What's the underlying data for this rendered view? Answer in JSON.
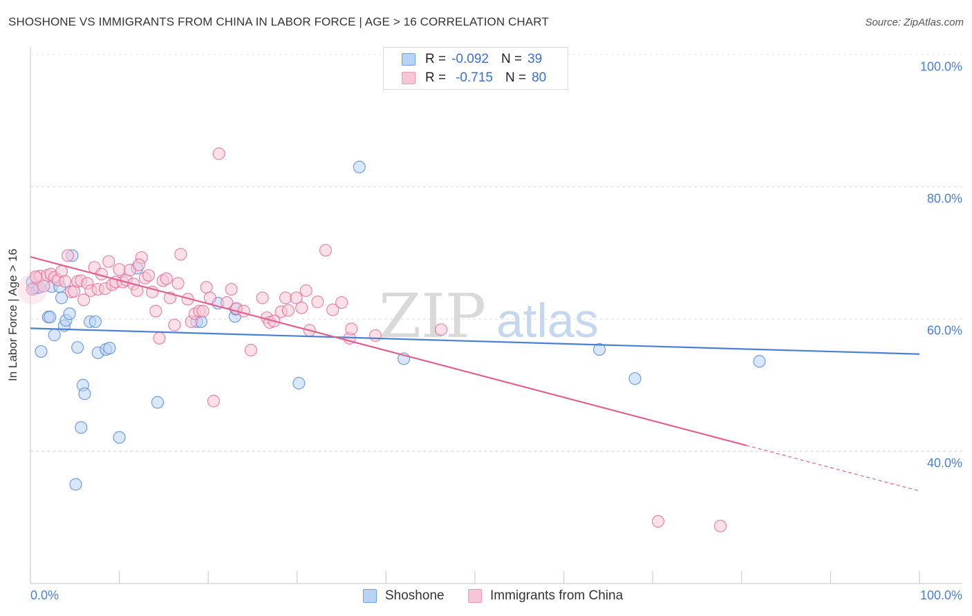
{
  "header": {
    "title": "SHOSHONE VS IMMIGRANTS FROM CHINA IN LABOR FORCE | AGE > 16 CORRELATION CHART",
    "source": "Source: ZipAtlas.com"
  },
  "watermark": {
    "part1": "ZIP",
    "part2": "atlas"
  },
  "legend": {
    "rows": [
      {
        "r_label": "R =",
        "r_value": "-0.092",
        "n_label": "N =",
        "n_value": "39",
        "color": "#4a7fd4",
        "fill": "#b9d3f5"
      },
      {
        "r_label": "R =",
        "r_value": "-0.715",
        "n_label": "N =",
        "n_value": "80",
        "color": "#e06090",
        "fill": "#f7c6d6"
      }
    ]
  },
  "bottom_legend": {
    "items": [
      {
        "label": "Shoshone",
        "fill": "#b9d3f5",
        "border": "#6f9fe0"
      },
      {
        "label": "Immigrants from China",
        "fill": "#f7c6d6",
        "border": "#e898b4"
      }
    ]
  },
  "chart_data": {
    "type": "scatter",
    "title": "SHOSHONE VS IMMIGRANTS FROM CHINA IN LABOR FORCE | AGE > 16 CORRELATION CHART",
    "xlabel": "",
    "ylabel": "In Labor Force | Age > 16",
    "xlim": [
      0,
      100
    ],
    "ylim": [
      20,
      100
    ],
    "x_tick_labels": [
      "0.0%",
      "100.0%"
    ],
    "y_ticks": [
      40,
      60,
      80,
      100
    ],
    "y_tick_labels": [
      "40.0%",
      "60.0%",
      "80.0%",
      "100.0%"
    ],
    "grid": true,
    "series": [
      {
        "name": "Shoshone",
        "color": "#4a7fd4",
        "fill": "#b9d3f5",
        "r": -0.092,
        "n": 39,
        "trend": {
          "x0": 0,
          "y0": 58.6,
          "x1": 100,
          "y1": 54.7
        },
        "points": [
          [
            0.4,
            64.7
          ],
          [
            0.7,
            64.7
          ],
          [
            1.2,
            55.1
          ],
          [
            2.0,
            60.3
          ],
          [
            2.2,
            60.3
          ],
          [
            2.4,
            64.9
          ],
          [
            2.7,
            57.6
          ],
          [
            3.3,
            64.9
          ],
          [
            3.5,
            63.2
          ],
          [
            3.8,
            59.0
          ],
          [
            4.0,
            59.8
          ],
          [
            4.4,
            60.8
          ],
          [
            4.7,
            69.6
          ],
          [
            5.3,
            55.7
          ],
          [
            5.9,
            50.0
          ],
          [
            6.1,
            48.7
          ],
          [
            5.7,
            43.6
          ],
          [
            6.7,
            59.6
          ],
          [
            7.3,
            59.6
          ],
          [
            7.6,
            54.9
          ],
          [
            8.5,
            55.4
          ],
          [
            8.9,
            55.6
          ],
          [
            10.0,
            42.1
          ],
          [
            12.0,
            67.7
          ],
          [
            14.3,
            47.4
          ],
          [
            5.1,
            35.0
          ],
          [
            18.7,
            59.6
          ],
          [
            19.2,
            59.6
          ],
          [
            21.1,
            62.4
          ],
          [
            23.0,
            60.4
          ],
          [
            23.1,
            61.5
          ],
          [
            30.2,
            50.3
          ],
          [
            37.0,
            83.0
          ],
          [
            42.0,
            54.0
          ],
          [
            64.0,
            55.4
          ],
          [
            68.0,
            51.0
          ],
          [
            82.0,
            53.6
          ],
          [
            0.2,
            65.6
          ],
          [
            1.0,
            64.8
          ]
        ]
      },
      {
        "name": "Immigrants from China",
        "color": "#e06090",
        "fill": "#f7c6d6",
        "r": -0.715,
        "n": 80,
        "trend": {
          "x0": 0,
          "y0": 69.4,
          "x1": 80.5,
          "y1": 40.9,
          "dashed_to": {
            "x": 100,
            "y": 34.0
          }
        },
        "points": [
          [
            0.2,
            64.5
          ],
          [
            0.7,
            66.2
          ],
          [
            1.1,
            66.5
          ],
          [
            1.5,
            65.0
          ],
          [
            1.9,
            66.6
          ],
          [
            2.3,
            66.8
          ],
          [
            2.7,
            66.3
          ],
          [
            3.1,
            65.9
          ],
          [
            3.5,
            67.2
          ],
          [
            3.9,
            65.7
          ],
          [
            4.2,
            69.6
          ],
          [
            4.6,
            64.1
          ],
          [
            4.9,
            64.2
          ],
          [
            5.3,
            65.7
          ],
          [
            5.7,
            65.8
          ],
          [
            6.0,
            62.9
          ],
          [
            6.4,
            65.4
          ],
          [
            6.8,
            64.3
          ],
          [
            7.2,
            67.8
          ],
          [
            7.6,
            64.5
          ],
          [
            8.0,
            66.8
          ],
          [
            8.4,
            64.6
          ],
          [
            8.8,
            68.7
          ],
          [
            9.2,
            65.2
          ],
          [
            9.6,
            65.6
          ],
          [
            10.0,
            67.5
          ],
          [
            10.4,
            65.6
          ],
          [
            10.8,
            65.9
          ],
          [
            11.2,
            67.4
          ],
          [
            11.6,
            65.3
          ],
          [
            12.0,
            64.3
          ],
          [
            12.5,
            69.3
          ],
          [
            12.9,
            66.2
          ],
          [
            13.3,
            66.6
          ],
          [
            13.7,
            64.1
          ],
          [
            14.1,
            61.2
          ],
          [
            14.5,
            57.1
          ],
          [
            14.9,
            65.8
          ],
          [
            15.3,
            66.1
          ],
          [
            15.7,
            63.2
          ],
          [
            16.2,
            59.1
          ],
          [
            16.6,
            65.4
          ],
          [
            16.9,
            69.8
          ],
          [
            17.7,
            63.0
          ],
          [
            18.1,
            59.6
          ],
          [
            18.5,
            60.8
          ],
          [
            19.0,
            61.2
          ],
          [
            19.4,
            61.2
          ],
          [
            19.8,
            64.8
          ],
          [
            20.2,
            63.2
          ],
          [
            20.6,
            47.6
          ],
          [
            21.2,
            85.0
          ],
          [
            22.1,
            62.5
          ],
          [
            22.6,
            64.5
          ],
          [
            23.2,
            61.6
          ],
          [
            24.0,
            61.2
          ],
          [
            24.8,
            55.3
          ],
          [
            26.1,
            63.2
          ],
          [
            26.6,
            60.2
          ],
          [
            26.9,
            59.5
          ],
          [
            27.4,
            59.7
          ],
          [
            28.2,
            61.1
          ],
          [
            28.7,
            63.2
          ],
          [
            29.0,
            61.3
          ],
          [
            29.9,
            63.2
          ],
          [
            30.5,
            61.7
          ],
          [
            31.0,
            64.3
          ],
          [
            31.4,
            58.3
          ],
          [
            32.3,
            62.6
          ],
          [
            33.2,
            70.4
          ],
          [
            34.0,
            61.4
          ],
          [
            35.0,
            62.5
          ],
          [
            35.9,
            57.1
          ],
          [
            36.1,
            58.5
          ],
          [
            38.8,
            57.5
          ],
          [
            46.2,
            58.4
          ],
          [
            70.6,
            29.4
          ],
          [
            77.6,
            28.7
          ],
          [
            0.6,
            66.4
          ],
          [
            12.2,
            68.2
          ]
        ]
      }
    ]
  }
}
